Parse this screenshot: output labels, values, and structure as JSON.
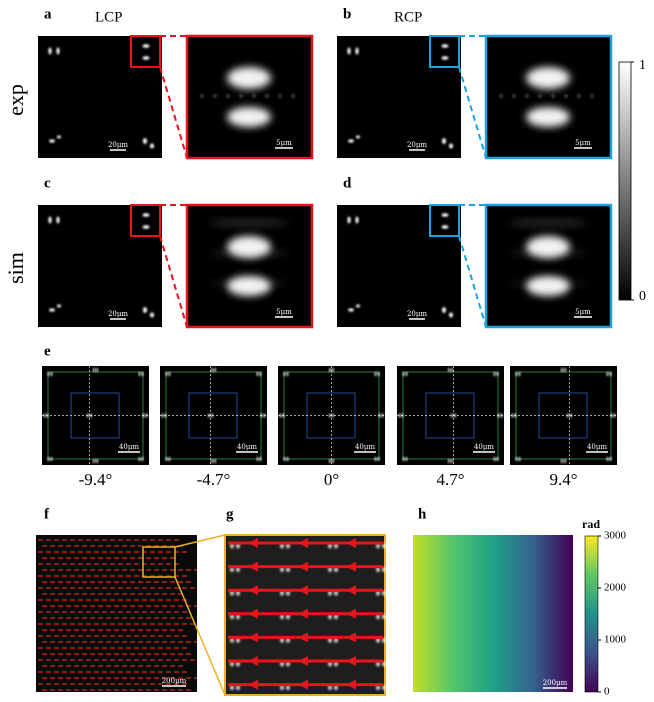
{
  "row_labels": [
    "exp",
    "sim"
  ],
  "top_panels": [
    {
      "label": "a",
      "polarization": "LCP",
      "scale_bar": "20μm",
      "zoom_scale_bar": "5μm"
    },
    {
      "label": "b",
      "polarization": "RCP",
      "scale_bar": "20μm",
      "zoom_scale_bar": "5μm"
    },
    {
      "label": "c",
      "scale_bar": "20μm",
      "zoom_scale_bar": "5μm"
    },
    {
      "label": "d",
      "scale_bar": "20μm",
      "zoom_scale_bar": "5μm"
    }
  ],
  "intensity_colorbar": {
    "ticks": [
      1,
      0
    ]
  },
  "panel_e": {
    "label": "e",
    "scale_bar": "40μm",
    "angles": [
      "-9.4°",
      "-4.7°",
      "0°",
      "4.7°",
      "9.4°"
    ]
  },
  "panel_f": {
    "label": "f",
    "scale_bar": "200μm"
  },
  "panel_g": {
    "label": "g"
  },
  "panel_h": {
    "label": "h",
    "scale_bar": "200μm",
    "colorbar_title": "rad",
    "ticks": [
      3000,
      2000,
      1000,
      0
    ]
  }
}
